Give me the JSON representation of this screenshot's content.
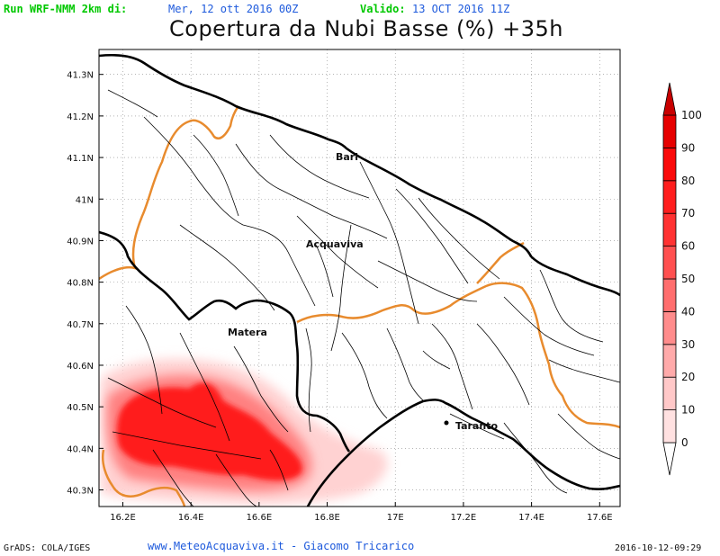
{
  "header": {
    "run_label": "Run WRF-NMM 2km di:",
    "run_date": "Mer, 12 ott 2016 00Z",
    "valid_label": "Valido:",
    "valid_date": "13 OCT 2016 11Z"
  },
  "title": "Copertura da Nubi Basse (%) +35h",
  "axes": {
    "lon_ticks": [
      "16.2E",
      "16.4E",
      "16.6E",
      "16.8E",
      "17E",
      "17.2E",
      "17.4E",
      "17.6E"
    ],
    "lat_ticks": [
      "41.3N",
      "41.2N",
      "41.1N",
      "41N",
      "40.9N",
      "40.8N",
      "40.7N",
      "40.6N",
      "40.5N",
      "40.4N",
      "40.3N"
    ],
    "lon_values": [
      16.2,
      16.4,
      16.6,
      16.8,
      17.0,
      17.2,
      17.4,
      17.6
    ],
    "lat_values": [
      41.3,
      41.2,
      41.1,
      41.0,
      40.9,
      40.8,
      40.7,
      40.6,
      40.5,
      40.4,
      40.3
    ],
    "lon_range": [
      16.13,
      17.66
    ],
    "lat_range": [
      40.26,
      41.36
    ],
    "grid": "dotted"
  },
  "cities": [
    {
      "name": "Bari",
      "lon": 16.87,
      "lat": 41.12
    },
    {
      "name": "Acquaviva",
      "lon": 16.84,
      "lat": 40.9
    },
    {
      "name": "Matera",
      "lon": 16.6,
      "lat": 40.67
    },
    {
      "name": "Taranto",
      "lon": 17.23,
      "lat": 40.46
    }
  ],
  "colorbar": {
    "labels": [
      "100",
      "90",
      "80",
      "70",
      "60",
      "50",
      "40",
      "30",
      "20",
      "10",
      "0"
    ],
    "values": [
      100,
      90,
      80,
      70,
      60,
      50,
      40,
      30,
      20,
      10,
      0
    ],
    "colors": [
      "#ffffff",
      "#ffe1e1",
      "#ffc8c8",
      "#ffaaaa",
      "#ff8c8c",
      "#ff6e6e",
      "#ff5050",
      "#ff3232",
      "#ff1e1e",
      "#fa0a0a",
      "#e60000",
      "#c80000"
    ]
  },
  "colors": {
    "coast": "#000000",
    "region_border": "#e88b2e",
    "province_border": "#000000",
    "cloud_core": "#ff1e1e"
  },
  "footer": {
    "left": "GrADS: COLA/IGES",
    "center": "www.MeteoAcquaviva.it - Giacomo Tricarico",
    "right": "2016-10-12-09:29"
  }
}
